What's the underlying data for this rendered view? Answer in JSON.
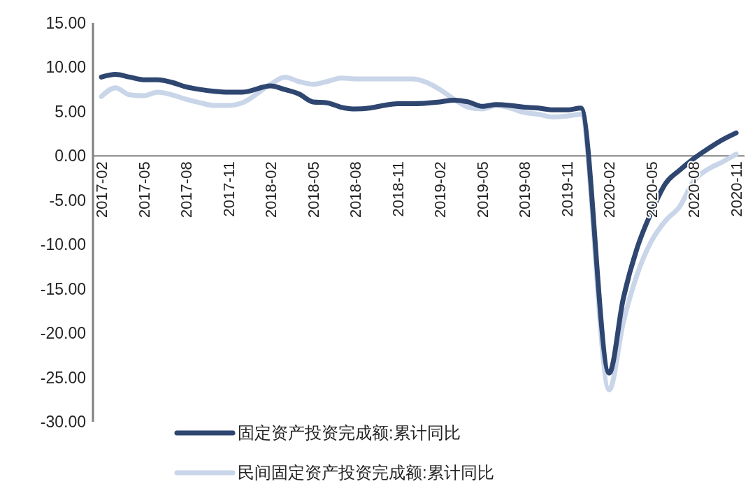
{
  "chart_data": {
    "type": "line",
    "categories": [
      "2017-02",
      null,
      null,
      "2017-05",
      null,
      null,
      "2017-08",
      null,
      null,
      "2017-11",
      null,
      null,
      "2018-02",
      null,
      null,
      "2018-05",
      null,
      null,
      "2018-08",
      null,
      null,
      "2018-11",
      null,
      null,
      "2019-02",
      null,
      null,
      "2019-05",
      null,
      null,
      "2019-08",
      null,
      null,
      "2019-11",
      null,
      null,
      "2020-02",
      null,
      null,
      "2020-05",
      null,
      null,
      "2020-08",
      null,
      null,
      "2020-11"
    ],
    "series": [
      {
        "name": "民间固定资产投资完成额:累计同比",
        "color": "#c9d5e8",
        "values": [
          6.7,
          7.7,
          6.9,
          6.8,
          7.2,
          6.9,
          6.4,
          6.0,
          5.7,
          5.7,
          6.0,
          null,
          8.1,
          8.9,
          8.4,
          8.1,
          8.4,
          8.8,
          8.7,
          8.7,
          8.7,
          8.7,
          8.7,
          null,
          7.5,
          6.4,
          5.5,
          5.3,
          5.7,
          5.4,
          4.9,
          4.7,
          4.4,
          4.5,
          4.7,
          null,
          -26.4,
          -18.8,
          -13.3,
          -9.6,
          -7.3,
          -5.7,
          -2.8,
          -1.5,
          -0.7,
          0.2
        ]
      },
      {
        "name": "固定资产投资完成额:累计同比",
        "color": "#2e4670",
        "values": [
          8.9,
          9.2,
          8.9,
          8.6,
          8.6,
          8.3,
          7.8,
          7.5,
          7.3,
          7.2,
          7.2,
          null,
          7.9,
          7.5,
          7.0,
          6.1,
          6.0,
          5.5,
          5.3,
          5.4,
          5.7,
          5.9,
          5.9,
          null,
          6.1,
          6.3,
          6.1,
          5.6,
          5.8,
          5.7,
          5.5,
          5.4,
          5.2,
          5.2,
          5.4,
          null,
          -24.5,
          -16.1,
          -10.3,
          -6.3,
          -3.1,
          -1.6,
          -0.3,
          0.8,
          1.8,
          2.6
        ]
      }
    ],
    "ylim": [
      -30,
      15
    ],
    "yticks": [
      {
        "value": 15,
        "label": "15.00"
      },
      {
        "value": 10,
        "label": "10.00"
      },
      {
        "value": 5,
        "label": "5.00"
      },
      {
        "value": 0,
        "label": "0.00"
      },
      {
        "value": -5,
        "label": "-5.00"
      },
      {
        "value": -10,
        "label": "-10.00"
      },
      {
        "value": -15,
        "label": "-15.00"
      },
      {
        "value": -20,
        "label": "-20.00"
      },
      {
        "value": -25,
        "label": "-25.00"
      },
      {
        "value": -30,
        "label": "-30.00"
      }
    ],
    "grid": false,
    "legend": "bottom",
    "marker": "none",
    "line_style": "solid"
  }
}
